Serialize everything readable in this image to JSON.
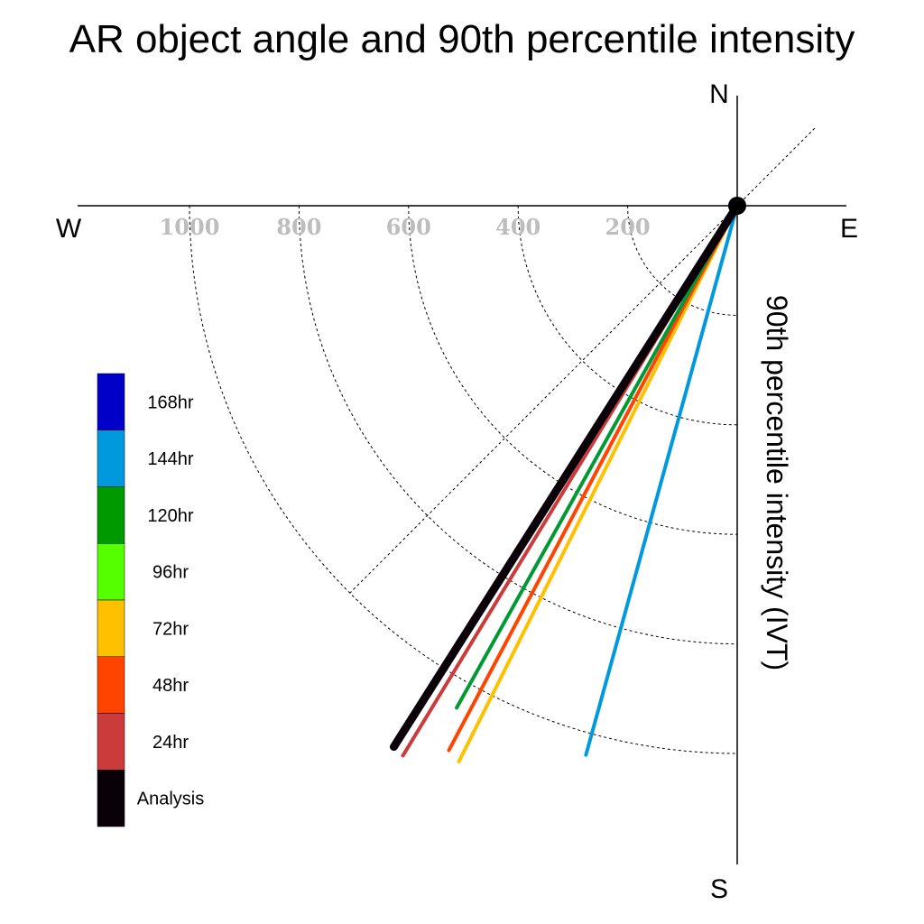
{
  "chart_data": {
    "type": "polar-vector",
    "title": "AR object angle and 90th percentile intensity",
    "ylabel": "90th percentile intensity (IVT)",
    "compass": {
      "n": "N",
      "s": "S",
      "e": "E",
      "w": "W"
    },
    "radial_ticks": [
      {
        "value": 200,
        "label": "200"
      },
      {
        "value": 400,
        "label": "400"
      },
      {
        "value": 600,
        "label": "600"
      },
      {
        "value": 800,
        "label": "800"
      },
      {
        "value": 1000,
        "label": "1000"
      }
    ],
    "guide_angle_deg": 225,
    "series": [
      {
        "name": "144hr",
        "color": "#0099dd",
        "angle_deg": 195.4,
        "magnitude": 1040
      },
      {
        "name": "72hr",
        "color": "#ffc000",
        "angle_deg": 206.6,
        "magnitude": 1135
      },
      {
        "name": "48hr",
        "color": "#ff4400",
        "angle_deg": 207.9,
        "magnitude": 1125
      },
      {
        "name": "120hr",
        "color": "#009933",
        "angle_deg": 209.2,
        "magnitude": 1050
      },
      {
        "name": "24hr",
        "color": "#cc3b3b",
        "angle_deg": 211.3,
        "magnitude": 1175
      },
      {
        "name": "Analysis",
        "color": "#0a0008",
        "angle_deg": 212.4,
        "magnitude": 1170
      }
    ],
    "legend": [
      {
        "label": "168hr",
        "color": "#0000c8"
      },
      {
        "label": "144hr",
        "color": "#0099dd"
      },
      {
        "label": "120hr",
        "color": "#009900"
      },
      {
        "label": "96hr",
        "color": "#55ff00"
      },
      {
        "label": "72hr",
        "color": "#ffc000"
      },
      {
        "label": "48hr",
        "color": "#ff4400"
      },
      {
        "label": "24hr",
        "color": "#cc3b3b"
      },
      {
        "label": "Analysis",
        "color": "#0a0008"
      }
    ]
  }
}
